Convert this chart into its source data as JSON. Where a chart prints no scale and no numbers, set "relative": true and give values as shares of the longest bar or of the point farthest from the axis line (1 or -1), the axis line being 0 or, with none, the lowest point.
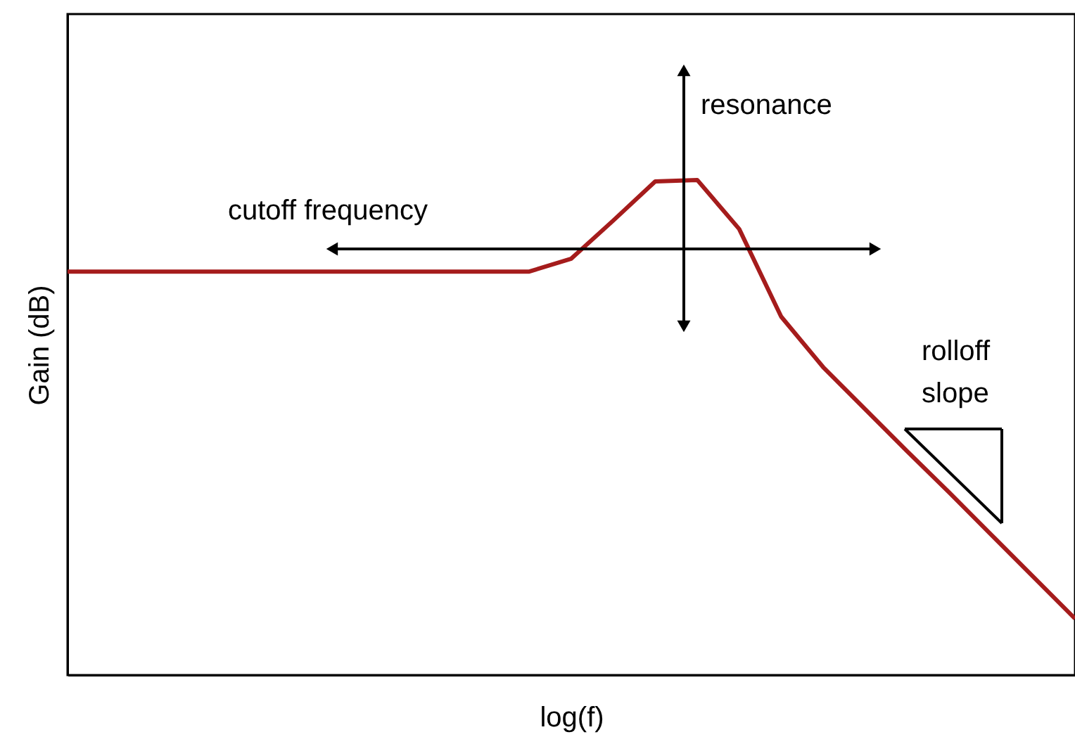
{
  "chart_data": {
    "type": "line",
    "relative": true,
    "xlabel": "log(f)",
    "ylabel": "Gain (dB)",
    "categories": [
      null,
      null,
      null,
      null,
      null,
      null,
      null,
      null,
      null,
      null,
      null,
      null,
      null,
      null,
      null,
      null,
      null,
      null,
      null,
      null,
      null,
      null,
      null,
      null,
      null
    ],
    "series": [
      {
        "color": "#a51c1c",
        "values": [
          0.815,
          0.815,
          0.815,
          0.815,
          0.815,
          0.815,
          0.815,
          0.815,
          0.815,
          0.815,
          0.815,
          0.815,
          0.841,
          0.918,
          0.997,
          1,
          0.901,
          0.724,
          0.622,
          0.537,
          0.452,
          0.369,
          0.284,
          0.199,
          0.114
        ]
      }
    ],
    "annotations": [
      "cutoff frequency",
      "resonance",
      "rolloff\nslope"
    ],
    "grid": false
  }
}
